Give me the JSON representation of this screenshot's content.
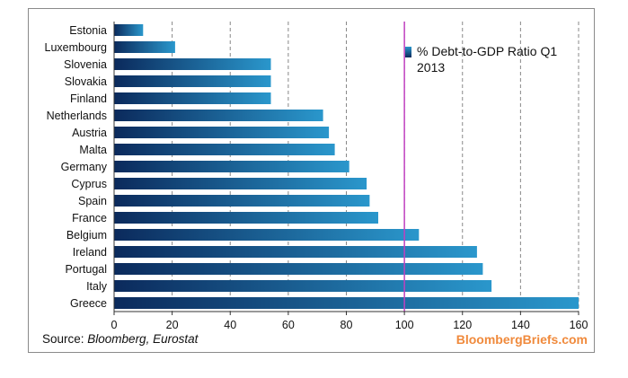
{
  "chart_data": {
    "type": "bar",
    "orientation": "horizontal",
    "title": "",
    "xlabel": "",
    "ylabel": "",
    "xlim": [
      0,
      160
    ],
    "x_ticks": [
      0,
      20,
      40,
      60,
      80,
      100,
      120,
      140,
      160
    ],
    "grid": "vertical dashed",
    "reference_line": {
      "value": 100,
      "color": "#c040c0"
    },
    "categories": [
      "Estonia",
      "Luxembourg",
      "Slovenia",
      "Slovakia",
      "Finland",
      "Netherlands",
      "Austria",
      "Malta",
      "Germany",
      "Cyprus",
      "Spain",
      "France",
      "Belgium",
      "Ireland",
      "Portugal",
      "Italy",
      "Greece"
    ],
    "series": [
      {
        "name": "% Debt-to-GDP Ratio Q1 2013",
        "values": [
          10,
          21,
          54,
          54,
          54,
          72,
          74,
          76,
          81,
          87,
          88,
          91,
          105,
          125,
          127,
          130,
          160
        ]
      }
    ],
    "legend": {
      "lines": [
        "% Debt-to-GDP Ratio Q1",
        "2013"
      ],
      "position": "top-right"
    }
  },
  "footer": {
    "source_prefix": "Source: ",
    "source_names": "Bloomberg, Eurostat",
    "brand": "BloombergBriefs.com"
  },
  "colors": {
    "bar_dark": "#0b2a5c",
    "bar_light": "#2a97cc",
    "grid": "#888888",
    "reference": "#c040c0",
    "brand": "#f08a3c"
  }
}
